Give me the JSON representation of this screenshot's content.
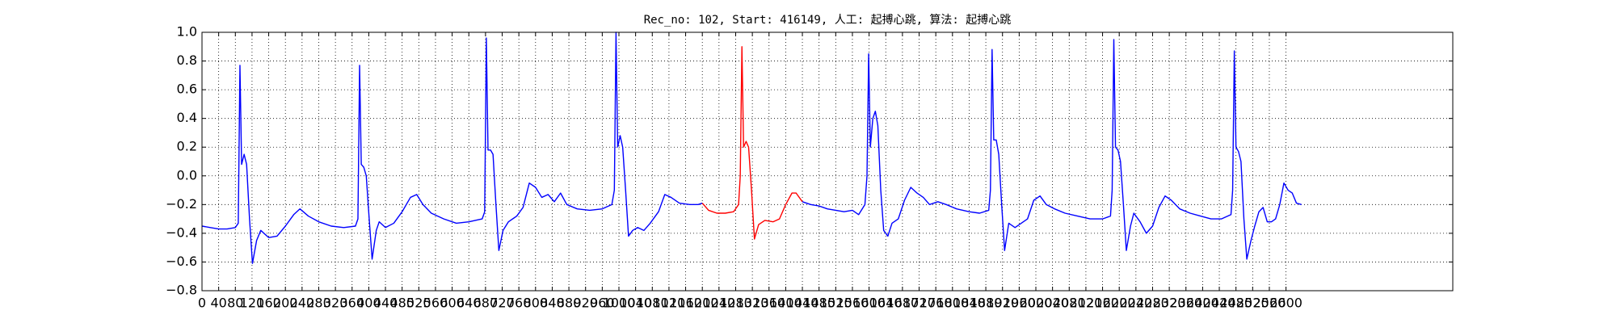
{
  "chart_data": {
    "type": "line",
    "title": "Rec_no: 102, Start: 416149, 人工: 起搏心跳, 算法: 起搏心跳",
    "xlim": [
      0,
      3000
    ],
    "xticks": [
      0,
      40,
      80,
      120,
      160,
      200,
      240,
      280,
      320,
      360,
      400,
      440,
      480,
      520,
      560,
      600,
      640,
      680,
      720,
      760,
      800,
      840,
      880,
      920,
      960,
      1000,
      1040,
      1080,
      1120,
      1160,
      1200,
      1240,
      1280,
      1320,
      1360,
      1400,
      1440,
      1480,
      1520,
      1560,
      1600,
      1640,
      1680,
      1720,
      1760,
      1800,
      1840,
      1880,
      1920,
      1960,
      2000,
      2040,
      2080,
      2120,
      2160,
      2200,
      2240,
      2280,
      2320,
      2360,
      2400,
      2440,
      2480,
      2520,
      2560,
      2600
    ],
    "ylim": [
      -0.8,
      1.0
    ],
    "yticks": [
      {
        "value": 1.0,
        "label": "1.0"
      },
      0.8,
      0.6,
      0.4,
      0.2,
      {
        "value": 0.0,
        "label": "0.0"
      },
      {
        "value": -0.2,
        "label": "−0.2"
      },
      {
        "value": -0.4,
        "label": "−0.4"
      },
      {
        "value": -0.6,
        "label": "−0.6"
      },
      {
        "value": -0.8,
        "label": "−0.8"
      }
    ],
    "grid": true,
    "series": [
      {
        "color": "#0000ff",
        "x": [
          0,
          20,
          40,
          60,
          80,
          87,
          91,
          95,
          101,
          107,
          114,
          121,
          131,
          141,
          160,
          180,
          200,
          220,
          235,
          255,
          280,
          310,
          340,
          368,
          374,
          378,
          382,
          388,
          394,
          401,
          408,
          418,
          425,
          440,
          460,
          480,
          500,
          515,
          530,
          550,
          580,
          610,
          640,
          672,
          678,
          682,
          686,
          692,
          698,
          705,
          712,
          722,
          735,
          755,
          770,
          785,
          800,
          815,
          830,
          845,
          860,
          875,
          900,
          930,
          960,
          983,
          989,
          993,
          997,
          1003,
          1009,
          1016,
          1023,
          1033,
          1045,
          1060,
          1075,
          1095,
          1110,
          1125,
          1145,
          1170,
          1190,
          1200
        ],
        "values": [
          -0.35,
          -0.36,
          -0.37,
          -0.37,
          -0.36,
          -0.33,
          0.77,
          0.08,
          0.15,
          0.08,
          -0.3,
          -0.61,
          -0.45,
          -0.38,
          -0.43,
          -0.42,
          -0.35,
          -0.27,
          -0.23,
          -0.28,
          -0.32,
          -0.35,
          -0.36,
          -0.35,
          -0.3,
          0.77,
          0.08,
          0.06,
          0.0,
          -0.3,
          -0.58,
          -0.38,
          -0.32,
          -0.36,
          -0.33,
          -0.25,
          -0.15,
          -0.13,
          -0.2,
          -0.26,
          -0.3,
          -0.33,
          -0.32,
          -0.3,
          -0.25,
          0.96,
          0.18,
          0.18,
          0.15,
          -0.2,
          -0.52,
          -0.38,
          -0.32,
          -0.28,
          -0.22,
          -0.05,
          -0.08,
          -0.15,
          -0.13,
          -0.18,
          -0.12,
          -0.2,
          -0.23,
          -0.24,
          -0.23,
          -0.2,
          -0.1,
          1.0,
          0.2,
          0.28,
          0.2,
          -0.1,
          -0.42,
          -0.38,
          -0.36,
          -0.38,
          -0.33,
          -0.25,
          -0.13,
          -0.15,
          -0.19,
          -0.2,
          -0.2,
          -0.19
        ]
      },
      {
        "color": "#ff0000",
        "x": [
          1200,
          1215,
          1235,
          1255,
          1275,
          1287,
          1291,
          1295,
          1299,
          1305,
          1311,
          1318,
          1325,
          1335,
          1350,
          1370,
          1385,
          1400,
          1415,
          1425,
          1440
        ],
        "values": [
          -0.19,
          -0.24,
          -0.26,
          -0.26,
          -0.25,
          -0.2,
          0.0,
          0.9,
          0.2,
          0.24,
          0.2,
          -0.1,
          -0.44,
          -0.34,
          -0.31,
          -0.32,
          -0.3,
          -0.2,
          -0.12,
          -0.12,
          -0.18
        ]
      },
      {
        "color": "#0000ff",
        "x": [
          1440,
          1460,
          1480,
          1500,
          1520,
          1540,
          1560,
          1575,
          1590,
          1595,
          1599,
          1603,
          1609,
          1615,
          1621,
          1628,
          1635,
          1645,
          1655,
          1670,
          1685,
          1700,
          1715,
          1730,
          1745,
          1765,
          1785,
          1810,
          1840,
          1865,
          1887,
          1891,
          1895,
          1899,
          1905,
          1911,
          1918,
          1925,
          1935,
          1950,
          1965,
          1980,
          1995,
          2010,
          2025,
          2045,
          2070,
          2100,
          2130,
          2160,
          2179,
          2183,
          2187,
          2191,
          2197,
          2203,
          2210,
          2217,
          2227,
          2235,
          2250,
          2265,
          2280,
          2295,
          2310,
          2325,
          2345,
          2370,
          2395,
          2420,
          2445,
          2468,
          2472,
          2476,
          2480,
          2486,
          2492,
          2499,
          2506,
          2516,
          2525,
          2535,
          2545,
          2555,
          2565,
          2575,
          2585,
          2595,
          2605,
          2615,
          2625,
          2637
        ],
        "values": [
          -0.18,
          -0.2,
          -0.21,
          -0.23,
          -0.24,
          -0.25,
          -0.24,
          -0.27,
          -0.2,
          0.0,
          0.85,
          0.2,
          0.4,
          0.45,
          0.35,
          -0.1,
          -0.38,
          -0.42,
          -0.33,
          -0.3,
          -0.17,
          -0.08,
          -0.12,
          -0.15,
          -0.2,
          -0.18,
          -0.2,
          -0.23,
          -0.25,
          -0.26,
          -0.24,
          -0.1,
          0.88,
          0.25,
          0.25,
          0.15,
          -0.2,
          -0.52,
          -0.33,
          -0.36,
          -0.33,
          -0.3,
          -0.17,
          -0.14,
          -0.2,
          -0.23,
          -0.26,
          -0.28,
          -0.3,
          -0.3,
          -0.28,
          -0.1,
          0.95,
          0.2,
          0.18,
          0.1,
          -0.2,
          -0.52,
          -0.35,
          -0.26,
          -0.32,
          -0.4,
          -0.35,
          -0.22,
          -0.14,
          -0.17,
          -0.23,
          -0.26,
          -0.28,
          -0.3,
          -0.3,
          -0.27,
          -0.1,
          0.87,
          0.2,
          0.17,
          0.1,
          -0.3,
          -0.58,
          -0.45,
          -0.35,
          -0.25,
          -0.22,
          -0.32,
          -0.32,
          -0.3,
          -0.2,
          -0.05,
          -0.1,
          -0.12,
          -0.19,
          -0.2
        ]
      }
    ]
  }
}
